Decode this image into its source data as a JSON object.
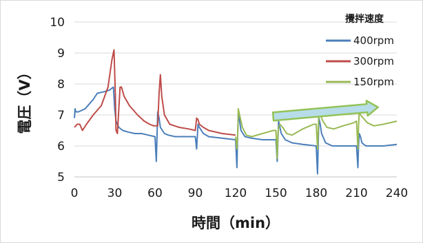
{
  "chart_data": {
    "type": "line",
    "xlabel": "時間（min）",
    "ylabel": "電圧（V）",
    "xlim": [
      0,
      240
    ],
    "ylim": [
      5,
      10
    ],
    "x_ticks": [
      0,
      30,
      60,
      90,
      120,
      150,
      180,
      210,
      240
    ],
    "y_ticks": [
      5,
      6,
      7,
      8,
      9,
      10
    ],
    "grid": "horizontal",
    "legend_title": "攪拌速度",
    "legend_position": "top-right",
    "series": [
      {
        "name": "400rpm",
        "color": "#4a7ebb",
        "x": [
          0,
          0.5,
          1,
          3,
          8,
          14,
          17,
          22,
          26,
          29,
          30,
          31,
          33,
          36,
          40,
          45,
          50,
          55,
          60,
          61,
          61.5,
          62,
          63,
          64,
          67,
          70,
          75,
          80,
          85,
          90,
          91,
          91.5,
          92,
          93,
          96,
          100,
          110,
          120,
          121,
          121.5,
          122,
          123,
          124,
          127,
          132,
          140,
          150,
          151,
          151.5,
          152,
          153,
          154,
          157,
          162,
          170,
          180,
          181,
          181.5,
          182,
          183,
          184,
          187,
          192,
          200,
          210,
          211,
          211.5,
          212,
          213,
          214,
          217,
          222,
          230,
          240
        ],
        "y": [
          6.9,
          7.2,
          7.1,
          7.1,
          7.2,
          7.5,
          7.7,
          7.75,
          7.8,
          7.9,
          7.2,
          6.8,
          6.6,
          6.5,
          6.45,
          6.4,
          6.4,
          6.35,
          6.3,
          5.5,
          6.3,
          7.1,
          6.9,
          6.6,
          6.4,
          6.35,
          6.3,
          6.3,
          6.3,
          6.3,
          5.9,
          6.3,
          6.7,
          6.6,
          6.4,
          6.3,
          6.25,
          6.2,
          5.3,
          6.3,
          7.0,
          6.8,
          6.5,
          6.3,
          6.25,
          6.2,
          6.2,
          5.5,
          6.2,
          6.8,
          6.6,
          6.4,
          6.2,
          6.1,
          6.05,
          6.0,
          5.1,
          6.1,
          6.9,
          6.7,
          6.4,
          6.1,
          6.0,
          6.0,
          6.0,
          5.3,
          6.0,
          6.4,
          6.3,
          6.1,
          6.0,
          6.0,
          6.0,
          6.05
        ]
      },
      {
        "name": "300rpm",
        "color": "#be4b48",
        "x": [
          0,
          2,
          4,
          6,
          9,
          14,
          20,
          25,
          28,
          29.5,
          30.5,
          31,
          32,
          34,
          35,
          37,
          41,
          47,
          52,
          56,
          59,
          62,
          63,
          64,
          65,
          67,
          71,
          78,
          85,
          90,
          91,
          92,
          93,
          96,
          100,
          110,
          120
        ],
        "y": [
          6.6,
          6.7,
          6.7,
          6.5,
          6.7,
          7.0,
          7.3,
          7.9,
          8.8,
          9.1,
          7.6,
          6.5,
          6.4,
          7.9,
          7.9,
          7.6,
          7.3,
          7.0,
          6.8,
          6.7,
          6.65,
          6.65,
          7.7,
          8.3,
          7.6,
          7.0,
          6.7,
          6.6,
          6.55,
          6.5,
          6.9,
          6.85,
          6.7,
          6.6,
          6.5,
          6.4,
          6.35
        ]
      },
      {
        "name": "150rpm",
        "color": "#98b954",
        "x": [
          120,
          121,
          121.5,
          122,
          123,
          125,
          128,
          132,
          140,
          148,
          150,
          151,
          151.5,
          152,
          153,
          155,
          158,
          162,
          170,
          178,
          180,
          181,
          181.5,
          182,
          183,
          185,
          188,
          193,
          200,
          208,
          210,
          211,
          211.5,
          212,
          213,
          215,
          218,
          223,
          230,
          240
        ],
        "y": [
          6.3,
          5.9,
          6.3,
          7.2,
          7.0,
          6.6,
          6.35,
          6.3,
          6.4,
          6.5,
          6.5,
          5.6,
          6.4,
          6.6,
          6.7,
          6.6,
          6.4,
          6.35,
          6.55,
          6.7,
          6.7,
          5.9,
          6.5,
          7.1,
          7.0,
          6.8,
          6.6,
          6.55,
          6.65,
          6.75,
          6.8,
          5.9,
          6.6,
          7.1,
          7.0,
          6.9,
          6.75,
          6.65,
          6.7,
          6.8
        ]
      }
    ],
    "annotation": {
      "type": "arrow",
      "from": [
        148,
        6.95
      ],
      "to": [
        226,
        7.25
      ],
      "fill": "#b7dde8",
      "stroke": "#92c357"
    }
  }
}
